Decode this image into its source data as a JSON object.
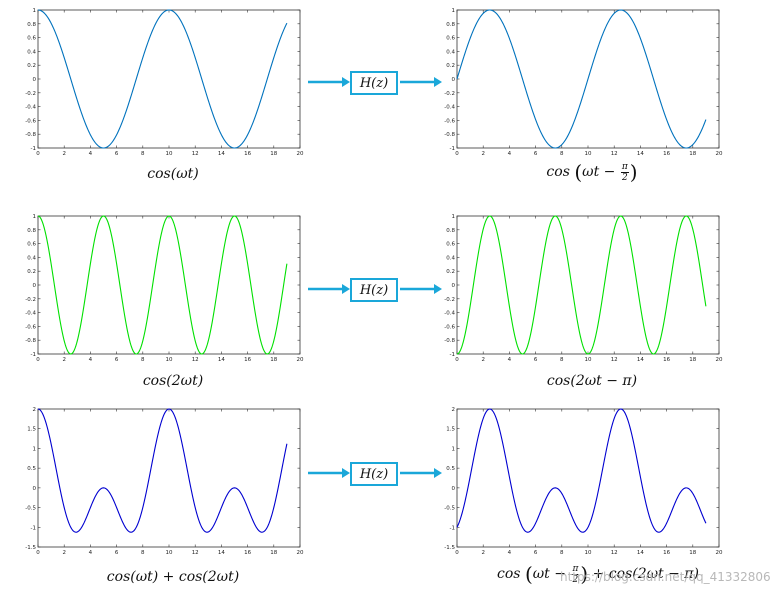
{
  "block_label": "H(z)",
  "watermark": "https://blog.csdn.net/qq_41332806",
  "chart_data": [
    {
      "type": "line",
      "caption": "cos(ωt)",
      "color": "#0072BD",
      "series": [
        {
          "function": "cos(pi*t/5)"
        }
      ],
      "x_range": [
        0,
        19
      ],
      "xlim": [
        0,
        20
      ],
      "ylim": [
        -1,
        1
      ],
      "xticks": [
        "0",
        "2",
        "4",
        "6",
        "8",
        "10",
        "12",
        "14",
        "16",
        "18",
        "20"
      ],
      "yticks": [
        "1",
        "0.8",
        "0.6",
        "0.4",
        "0.2",
        "0",
        "-0.2",
        "-0.4",
        "-0.6",
        "-0.8",
        "-1"
      ]
    },
    {
      "type": "line",
      "caption_parts": [
        "cos",
        "ωt − ",
        "π",
        "2"
      ],
      "color": "#0072BD",
      "series": [
        {
          "function": "cos(pi*t/5 - pi/2)"
        }
      ],
      "x_range": [
        0,
        19
      ],
      "xlim": [
        0,
        20
      ],
      "ylim": [
        -1,
        1
      ],
      "xticks": [
        "0",
        "2",
        "4",
        "6",
        "8",
        "10",
        "12",
        "14",
        "16",
        "18",
        "20"
      ],
      "yticks": [
        "1",
        "0.8",
        "0.6",
        "0.4",
        "0.2",
        "0",
        "-0.2",
        "-0.4",
        "-0.6",
        "-0.8",
        "-1"
      ]
    },
    {
      "type": "line",
      "caption": "cos(2ωt)",
      "color": "#00e000",
      "series": [
        {
          "function": "cos(2*pi*t/5)"
        }
      ],
      "x_range": [
        0,
        19
      ],
      "xlim": [
        0,
        20
      ],
      "ylim": [
        -1,
        1
      ],
      "xticks": [
        "0",
        "2",
        "4",
        "6",
        "8",
        "10",
        "12",
        "14",
        "16",
        "18",
        "20"
      ],
      "yticks": [
        "1",
        "0.8",
        "0.6",
        "0.4",
        "0.2",
        "0",
        "-0.2",
        "-0.4",
        "-0.6",
        "-0.8",
        "-1"
      ]
    },
    {
      "type": "line",
      "caption": "cos(2ωt − π)",
      "color": "#00e000",
      "series": [
        {
          "function": "cos(2*pi*t/5 - pi)"
        }
      ],
      "x_range": [
        0,
        19
      ],
      "xlim": [
        0,
        20
      ],
      "ylim": [
        -1,
        1
      ],
      "xticks": [
        "0",
        "2",
        "4",
        "6",
        "8",
        "10",
        "12",
        "14",
        "16",
        "18",
        "20"
      ],
      "yticks": [
        "1",
        "0.8",
        "0.6",
        "0.4",
        "0.2",
        "0",
        "-0.2",
        "-0.4",
        "-0.6",
        "-0.8",
        "-1"
      ]
    },
    {
      "type": "line",
      "caption": "cos(ωt) + cos(2ωt)",
      "color": "#0000d0",
      "series": [
        {
          "function": "cos(pi*t/5) + cos(2*pi*t/5)"
        }
      ],
      "x_range": [
        0,
        19
      ],
      "xlim": [
        0,
        20
      ],
      "ylim": [
        -1.5,
        2
      ],
      "xticks": [
        "0",
        "2",
        "4",
        "6",
        "8",
        "10",
        "12",
        "14",
        "16",
        "18",
        "20"
      ],
      "yticks": [
        "2",
        "1.5",
        "1",
        "0.5",
        "0",
        "-0.5",
        "-1",
        "-1.5"
      ]
    },
    {
      "type": "line",
      "caption_parts": [
        "cos",
        "ωt − ",
        "π",
        "2",
        " + cos(2ωt − π)"
      ],
      "color": "#0000d0",
      "series": [
        {
          "function": "cos(pi*t/5 - pi/2) + cos(2*pi*t/5 - pi)"
        }
      ],
      "x_range": [
        0,
        19
      ],
      "xlim": [
        0,
        20
      ],
      "ylim": [
        -1.5,
        2
      ],
      "xticks": [
        "0",
        "2",
        "4",
        "6",
        "8",
        "10",
        "12",
        "14",
        "16",
        "18",
        "20"
      ],
      "yticks": [
        "2",
        "1.5",
        "1",
        "0.5",
        "0",
        "-0.5",
        "-1",
        "-1.5"
      ]
    }
  ]
}
